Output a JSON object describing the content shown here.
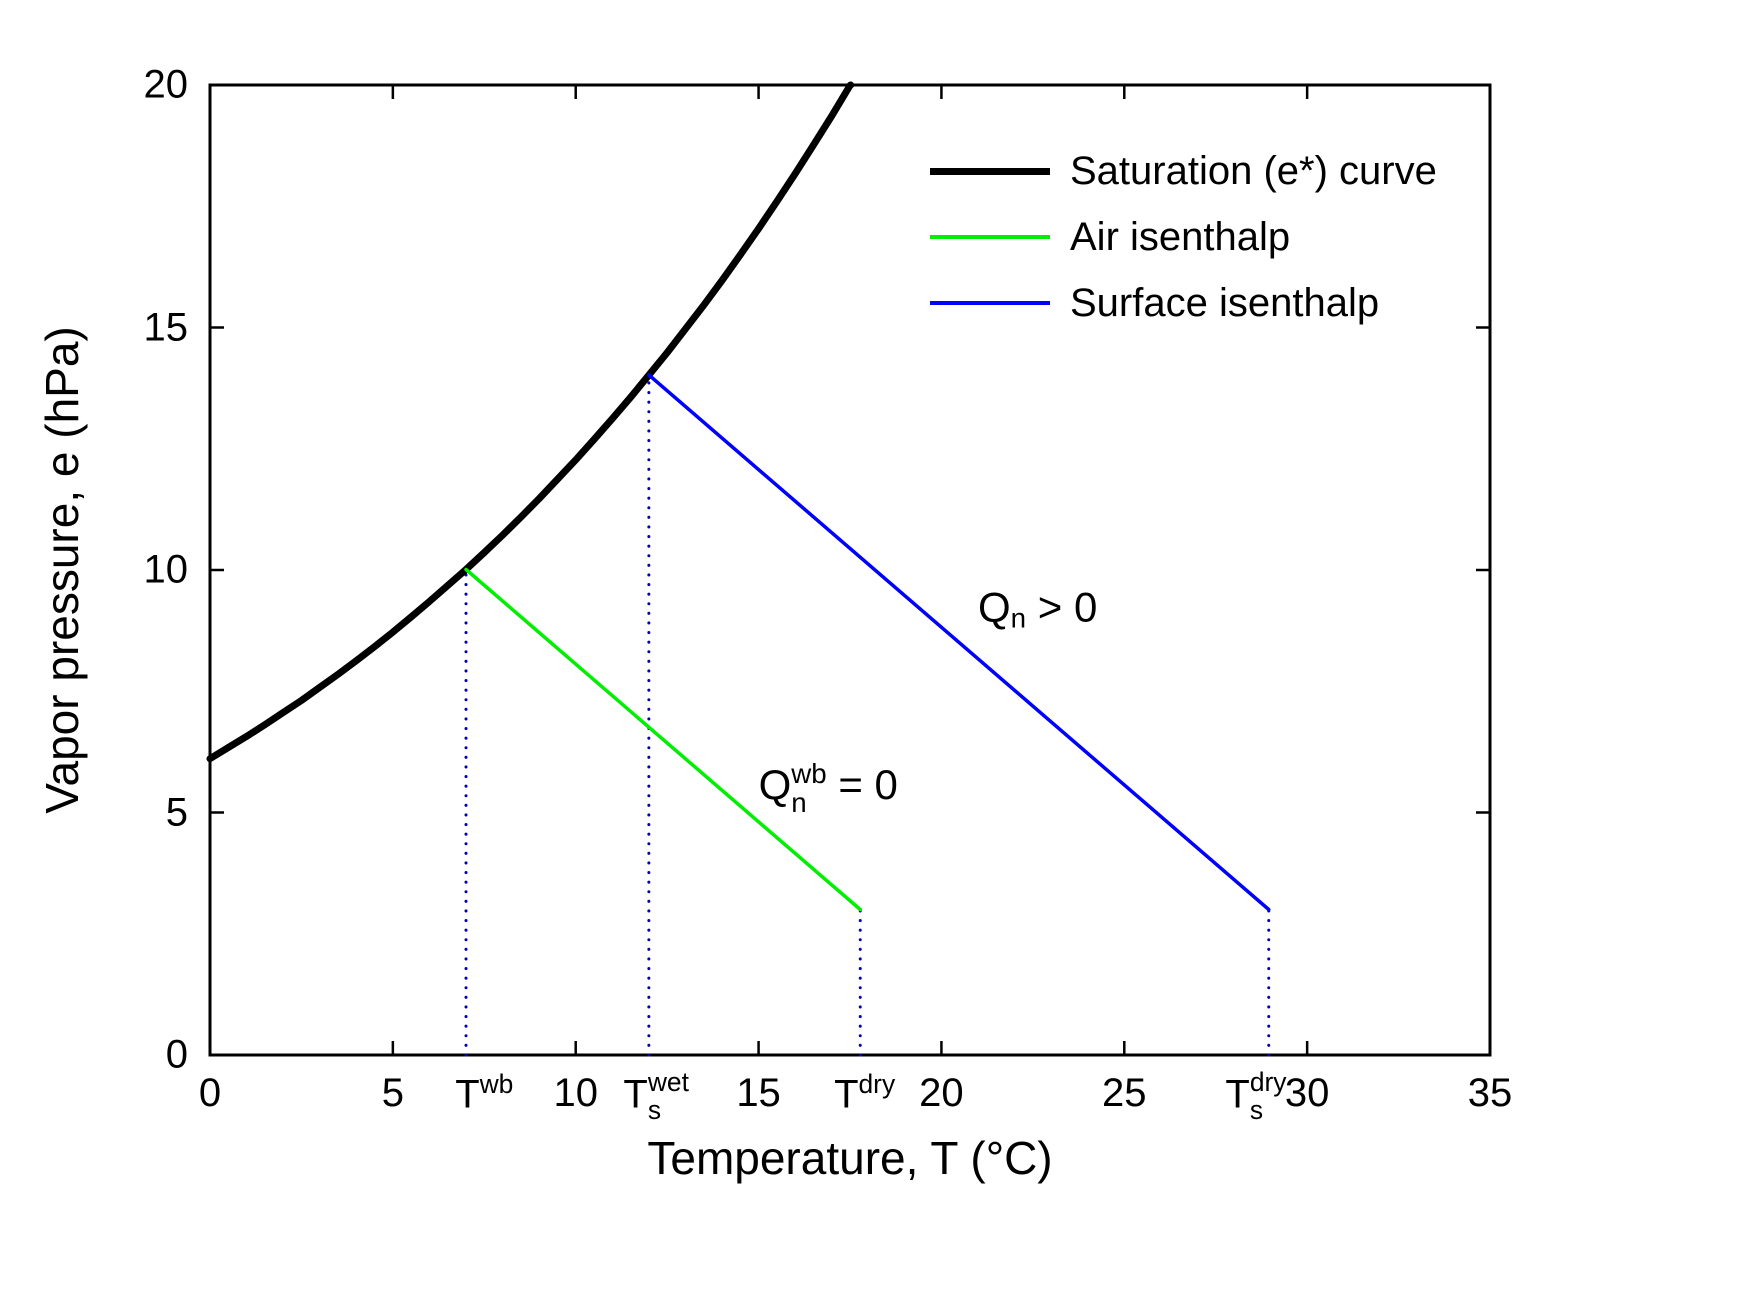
{
  "figure": {
    "background": "#ffffff"
  },
  "chart_data": {
    "type": "line",
    "title": "",
    "xlabel": "Temperature, T (°C)",
    "ylabel": "Vapor pressure, e (hPa)",
    "xlim": [
      0,
      35
    ],
    "ylim": [
      0,
      20
    ],
    "x_ticks": [
      0,
      5,
      10,
      15,
      20,
      25,
      30,
      35
    ],
    "y_ticks": [
      0,
      5,
      10,
      15,
      20
    ],
    "grid": false,
    "axis_color": "#000000",
    "guide_color": "#0000bb",
    "guide_style": "dotted",
    "legend_position": "top-right-inside",
    "series": [
      {
        "id": "saturation-curve",
        "name": "Saturation (e*) curve",
        "color": "#000000",
        "line_width": 7,
        "style": "solid",
        "points": [
          [
            0,
            6.11
          ],
          [
            0.5,
            6.34
          ],
          [
            1,
            6.57
          ],
          [
            1.5,
            6.81
          ],
          [
            2,
            7.06
          ],
          [
            2.5,
            7.31
          ],
          [
            3,
            7.58
          ],
          [
            3.5,
            7.85
          ],
          [
            4,
            8.13
          ],
          [
            4.5,
            8.42
          ],
          [
            5,
            8.72
          ],
          [
            5.5,
            9.03
          ],
          [
            6,
            9.35
          ],
          [
            6.5,
            9.68
          ],
          [
            7,
            10.01
          ],
          [
            7.5,
            10.36
          ],
          [
            8,
            10.72
          ],
          [
            8.5,
            11.09
          ],
          [
            9,
            11.47
          ],
          [
            9.5,
            11.87
          ],
          [
            10,
            12.27
          ],
          [
            10.5,
            12.69
          ],
          [
            11,
            13.12
          ],
          [
            11.5,
            13.56
          ],
          [
            12,
            14.02
          ],
          [
            12.5,
            14.48
          ],
          [
            13,
            14.97
          ],
          [
            13.5,
            15.46
          ],
          [
            14,
            15.97
          ],
          [
            14.5,
            16.5
          ],
          [
            15,
            17.04
          ],
          [
            15.5,
            17.6
          ],
          [
            16,
            18.17
          ],
          [
            16.5,
            18.76
          ],
          [
            17,
            19.36
          ],
          [
            17.5,
            19.99
          ],
          [
            17.52,
            20
          ]
        ]
      },
      {
        "id": "air-isenthalp",
        "name": "Air isenthalp",
        "color": "#00ee00",
        "line_width": 3.5,
        "style": "solid",
        "points": [
          [
            7,
            10.01
          ],
          [
            17.78,
            3
          ]
        ]
      },
      {
        "id": "surface-isenthalp",
        "name": "Surface isenthalp",
        "color": "#0000ff",
        "line_width": 3.5,
        "style": "solid",
        "points": [
          [
            12,
            14.02
          ],
          [
            28.95,
            3
          ]
        ]
      }
    ],
    "vertical_dotted_guides": [
      {
        "x": 7,
        "e_top": 10.01,
        "label": "T^wb"
      },
      {
        "x": 12,
        "e_top": 14.02,
        "label": "T_s^wet"
      },
      {
        "x": 17.78,
        "e_top": 3,
        "label": "T^dry"
      },
      {
        "x": 28.95,
        "e_top": 3,
        "label": "T_s^dry"
      }
    ],
    "x_axis_special_labels": [
      {
        "id": "twb",
        "x": 7.5,
        "base": "T",
        "sub": "",
        "sup": "wb"
      },
      {
        "id": "tswet",
        "x": 12.2,
        "base": "T",
        "sub": "s",
        "sup": "wet"
      },
      {
        "id": "tdry",
        "x": 17.9,
        "base": "T",
        "sub": "",
        "sup": "dry"
      },
      {
        "id": "tsdry",
        "x": 28.6,
        "base": "T",
        "sub": "s",
        "sup": "dry"
      }
    ],
    "annotations": [
      {
        "id": "qn-gt-0",
        "x": 21,
        "e": 9.2,
        "base": "Q",
        "sub": "n",
        "sup": "",
        "rest": " > 0"
      },
      {
        "id": "qnwb-eq-0",
        "x": 15,
        "e": 5.5,
        "base": "Q",
        "sub": "n",
        "sup": "wb",
        "rest": " = 0"
      }
    ]
  },
  "legend": {
    "items": [
      {
        "label": "Saturation (e*) curve",
        "color": "#000000",
        "line_width": 7
      },
      {
        "label": "Air isenthalp",
        "color": "#00ee00",
        "line_width": 3.5
      },
      {
        "label": "Surface isenthalp",
        "color": "#0000ff",
        "line_width": 3.5
      }
    ]
  }
}
